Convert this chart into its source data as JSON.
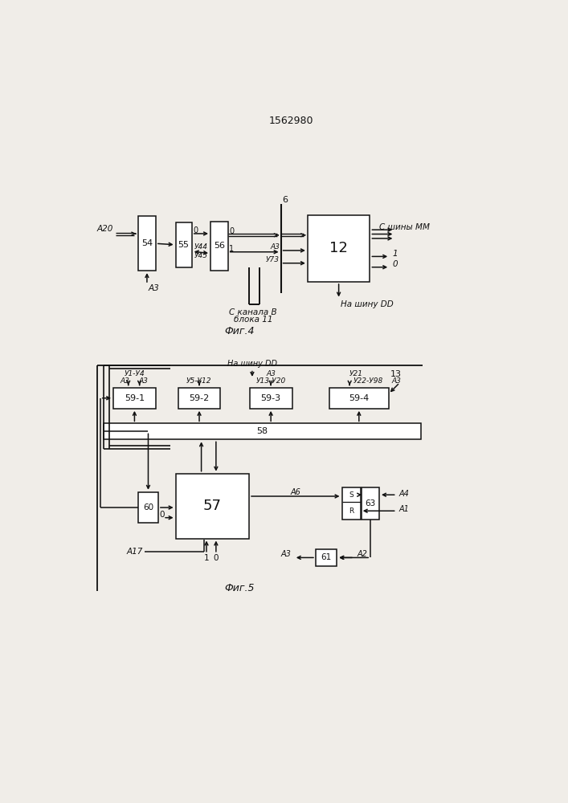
{
  "title": "1562980",
  "fig4_label": "Фиг.4",
  "fig5_label": "Фиг.5",
  "bg": "#f0ede8"
}
